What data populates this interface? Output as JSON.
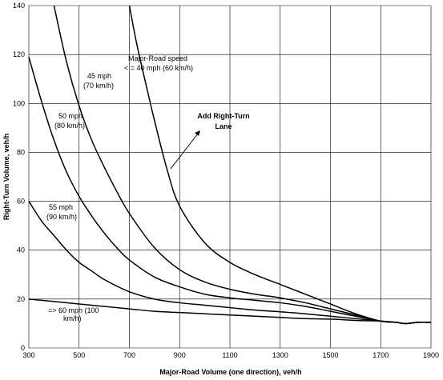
{
  "chart_data": {
    "type": "line",
    "title": "",
    "xlabel": "Major-Road Volume (one direction), veh/h",
    "ylabel": "Right-Turn Volume, veh/h",
    "xlim": [
      300,
      1900
    ],
    "ylim": [
      0,
      140
    ],
    "x_ticks": [
      "300",
      "500",
      "700",
      "900",
      "1100",
      "1300",
      "1500",
      "1700",
      "1900"
    ],
    "y_ticks": [
      "0",
      "20",
      "40",
      "60",
      "80",
      "100",
      "120",
      "140"
    ],
    "grid": true,
    "series": [
      {
        "name": "",
        "label_lines": [
          "Major-Road speed",
          "< = 40 mph (60 km/h)"
        ],
        "x": [
          700,
          730,
          770,
          800,
          850,
          900,
          1000,
          1100,
          1200,
          1300,
          1400,
          1500,
          1600,
          1700,
          1760,
          1800,
          1850,
          1900
        ],
        "y": [
          140,
          124,
          106,
          93,
          73,
          58,
          43,
          35,
          30,
          26,
          22,
          18,
          14,
          11,
          10.5,
          10,
          10.5,
          10.5
        ]
      },
      {
        "name": "",
        "label_lines": [
          "45 mph",
          "(70 km/h)"
        ],
        "x": [
          400,
          450,
          500,
          550,
          600,
          650,
          700,
          800,
          900,
          1000,
          1100,
          1200,
          1300,
          1400,
          1500,
          1600,
          1700,
          1760,
          1800,
          1850,
          1900
        ],
        "y": [
          140,
          117,
          99,
          85,
          74,
          64,
          55,
          41,
          32,
          27,
          24,
          22,
          20.5,
          18.5,
          16,
          13.5,
          11,
          10.5,
          10,
          10.5,
          10.5
        ]
      },
      {
        "name": "",
        "label_lines": [
          "50 mph",
          "(80 km/h)"
        ],
        "x": [
          300,
          350,
          400,
          450,
          500,
          550,
          600,
          650,
          700,
          800,
          900,
          1000,
          1100,
          1200,
          1300,
          1400,
          1500,
          1600,
          1700,
          1760,
          1800,
          1850,
          1900
        ],
        "y": [
          119,
          101,
          85,
          72,
          62,
          54,
          47,
          41,
          36,
          29,
          25,
          22,
          20.5,
          19.5,
          18.5,
          17,
          15,
          13,
          11,
          10.5,
          10,
          10.5,
          10.5
        ]
      },
      {
        "name": "",
        "label_lines": [
          "55 mph",
          "(90 km/h)"
        ],
        "x": [
          300,
          350,
          400,
          450,
          500,
          550,
          600,
          700,
          800,
          900,
          1000,
          1100,
          1200,
          1300,
          1400,
          1500,
          1600,
          1700,
          1760,
          1800,
          1850,
          1900
        ],
        "y": [
          60,
          52,
          46,
          40,
          35,
          31.5,
          28,
          23,
          20,
          18.5,
          17.5,
          16.5,
          15.5,
          14.8,
          14,
          13,
          12,
          11,
          10.5,
          10,
          10.5,
          10.5
        ]
      },
      {
        "name": "",
        "label_lines": [
          "=> 60 mph (100",
          "km/h)"
        ],
        "x": [
          300,
          400,
          500,
          600,
          700,
          800,
          900,
          1000,
          1100,
          1200,
          1300,
          1400,
          1500,
          1600,
          1700,
          1760,
          1800,
          1850,
          1900
        ],
        "y": [
          20,
          19,
          18,
          17,
          16,
          15,
          14.5,
          14,
          13.5,
          13,
          12.5,
          12,
          11.8,
          11.3,
          11,
          10.5,
          10,
          10.5,
          10.5
        ]
      }
    ],
    "annotations": {
      "add_lane": [
        "Add Right-Turn",
        "Lane"
      ]
    }
  }
}
